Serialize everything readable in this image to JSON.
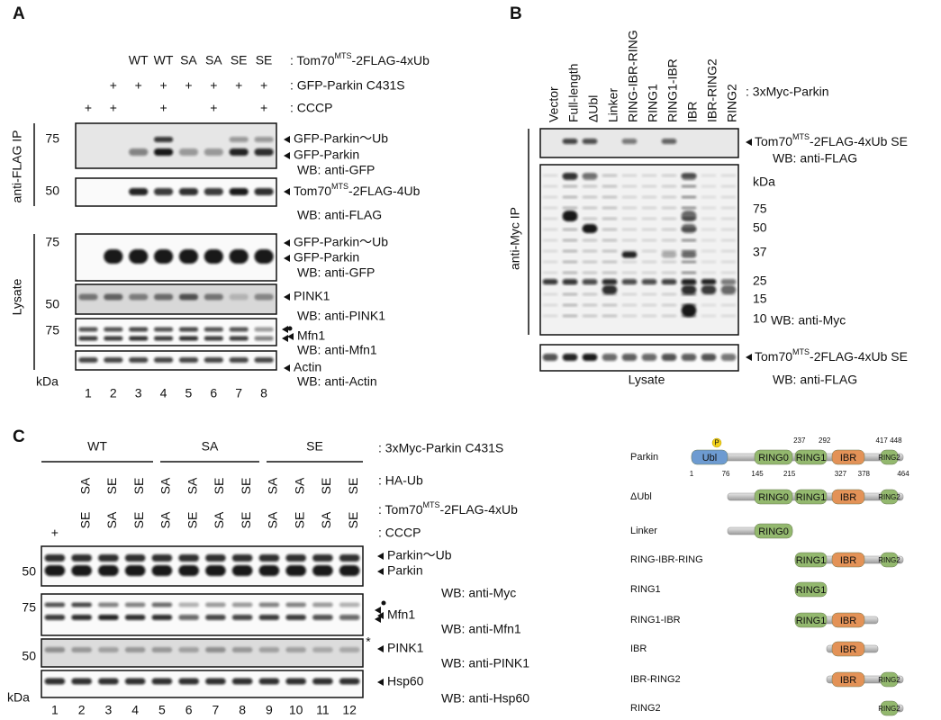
{
  "panel_a": {
    "label": "A",
    "rows": [
      {
        "lanes": [
          null,
          null,
          "WT",
          "WT",
          "SA",
          "SA",
          "SE",
          "SE"
        ],
        "label": {
          "pre": ": Tom70",
          "sup": "MTS",
          "post": "-2FLAG-4xUb"
        }
      },
      {
        "lanes": [
          null,
          "+",
          "+",
          "+",
          "+",
          "+",
          "+",
          "+"
        ],
        "label": ": GFP-Parkin C431S"
      },
      {
        "lanes": [
          "+",
          "+",
          null,
          "+",
          null,
          "+",
          null,
          "+"
        ],
        "label": ": CCCP"
      }
    ],
    "side_labels": [
      "anti-FLAG IP",
      "Lysate"
    ],
    "markers": [
      75,
      50,
      75,
      50,
      75
    ],
    "kda": "kDa",
    "band_labels": [
      "GFP-Parkin～Ub",
      "GFP-Parkin",
      "WB: anti-GFP",
      {
        "pre": "Tom70",
        "sup": "MTS",
        "post": "-2FLAG-4Ub"
      },
      "WB: anti-FLAG",
      "GFP-Parkin～Ub",
      "GFP-Parkin",
      "WB: anti-GFP",
      "PINK1",
      "WB: anti-PINK1",
      "Mfn1",
      "WB: anti-Mfn1",
      "Actin",
      "WB: anti-Actin"
    ],
    "lanes": [
      1,
      2,
      3,
      4,
      5,
      6,
      7,
      8
    ]
  },
  "panel_b": {
    "label": "B",
    "lanes": [
      "Vector",
      "Full-length",
      "ΔUbl",
      "Linker",
      "RING-IBR-RING",
      "RING1",
      "RING1-IBR",
      "IBR",
      "IBR-RING2",
      "RING2"
    ],
    "row_label": ": 3xMyc-Parkin",
    "side_label": "anti-Myc IP",
    "kda": "kDa",
    "markers": [
      75,
      50,
      37,
      25,
      15,
      10
    ],
    "band_labels": [
      {
        "pre": "Tom70",
        "sup": "MTS",
        "post": "-2FLAG-4xUb SE"
      },
      "WB: anti-FLAG",
      "WB: anti-Myc",
      {
        "pre": "Tom70",
        "sup": "MTS",
        "post": "-2FLAG-4xUb SE"
      },
      "WB: anti-FLAG"
    ],
    "lysate": "Lysate"
  },
  "panel_c": {
    "label": "C",
    "groups": [
      "WT",
      "SA",
      "SE"
    ],
    "group_label": ": 3xMyc-Parkin C431S",
    "rows": [
      {
        "lanes": [
          null,
          "SA",
          "SE",
          "SE",
          "SA",
          "SA",
          "SE",
          "SE",
          "SA",
          "SA",
          "SE",
          "SE"
        ],
        "label": ": HA-Ub"
      },
      {
        "lanes": [
          null,
          "SE",
          "SA",
          "SE",
          "SA",
          "SE",
          "SA",
          "SE",
          "SA",
          "SE",
          "SA",
          "SE"
        ],
        "label": {
          "pre": ": Tom70",
          "sup": "MTS",
          "post": "-2FLAG-4xUb"
        }
      },
      {
        "lanes": [
          "+",
          null,
          null,
          null,
          null,
          null,
          null,
          null,
          null,
          null,
          null,
          null
        ],
        "label": ": CCCP"
      }
    ],
    "markers": [
      50,
      75,
      50
    ],
    "kda": "kDa",
    "band_labels": [
      "Parkin～Ub",
      "Parkin",
      "WB: anti-Myc",
      "Mfn1",
      "WB: anti-Mfn1",
      "PINK1",
      "WB: anti-PINK1",
      "Hsp60",
      "WB: anti-Hsp60"
    ],
    "asterisk": "*",
    "lanes": [
      1,
      2,
      3,
      4,
      5,
      6,
      7,
      8,
      9,
      10,
      11,
      12
    ]
  },
  "domain_diagram": {
    "constructs": [
      "Parkin",
      "ΔUbl",
      "Linker",
      "RING-IBR-RING",
      "RING1",
      "RING1-IBR",
      "IBR",
      "IBR-RING2",
      "RING2"
    ],
    "domains": {
      "ubl": "Ubl",
      "ring0": "RING0",
      "ring1": "RING1",
      "ibr": "IBR",
      "ring2": "RING2"
    },
    "phospho": "P",
    "residues": [
      1,
      76,
      145,
      215,
      237,
      292,
      327,
      378,
      417,
      448,
      464
    ]
  }
}
